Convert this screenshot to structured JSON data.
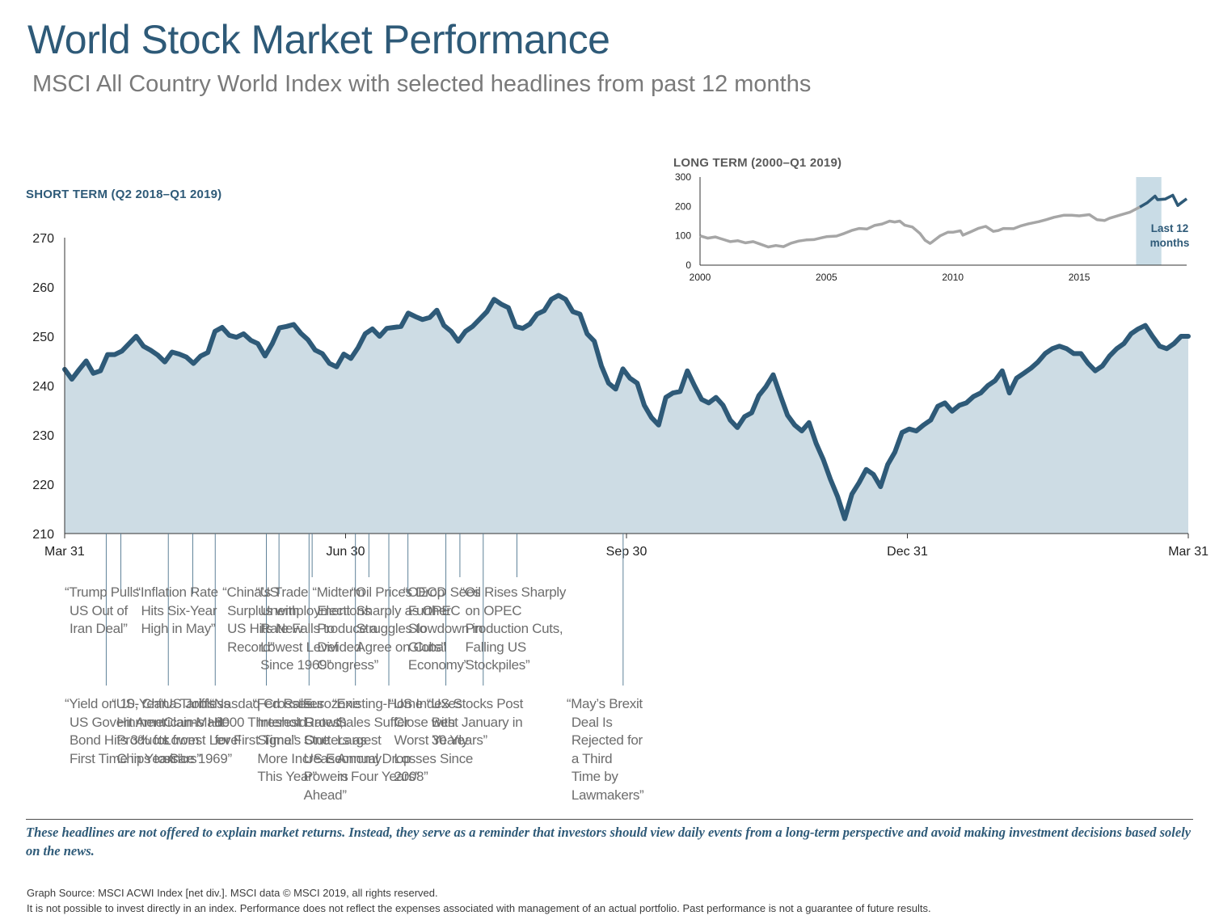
{
  "title": "World Stock Market Performance",
  "subtitle": "MSCI All Country World Index with selected headlines from past 12 months",
  "short_term_label": "SHORT TERM (Q2 2018–Q1 2019)",
  "long_term_label": "LONG TERM (2000–Q1 2019)",
  "highlight_label": "Last 12 months",
  "disclaimer": "These headlines are not offered to explain market returns. Instead, they serve as a reminder that investors should view daily events from a long-term perspective and avoid making investment decisions based solely on the news.",
  "source_line1": "Graph Source: MSCI ACWI Index [net div.]. MSCI data © MSCI 2019, all rights reserved.",
  "source_line2": "It is not possible to invest directly in an index. Performance does not reflect the expenses associated with management of an actual portfolio. Past performance is not a guarantee of future results.",
  "colors": {
    "title": "#2e5a78",
    "line": "#2e5a78",
    "fill": "#cddce4",
    "long_term_line": "#a6a6a6",
    "highlight": "#c9dce6",
    "headline_text": "#6d6d6d"
  },
  "headlines": [
    {
      "text": "“Yield on 10-Year US Government Bond Hits 3% for First Time in Years”",
      "lines": [
        "“Yield on 10-Year",
        "US Government",
        "Bond Hits 3% for",
        "First Time in Years”"
      ],
      "date_index": 0.148,
      "position": "below"
    },
    {
      "text": "“Trump Pulls US Out of Iran Deal”",
      "lines": [
        "“Trump Pulls",
        "US Out of",
        "Iran Deal”"
      ],
      "date_index": 0.2,
      "position": "above"
    },
    {
      "text": "“US, China Tariffs Hit American-Made Products from Chips to Cars”",
      "lines": [
        "“US, China Tariffs",
        "Hit American-Made",
        "Products from",
        "Chips to Cars”"
      ],
      "date_index": 0.369,
      "position": "below"
    },
    {
      "text": "“Inflation Rate Hits Six-Year High in May”",
      "lines": [
        "“Inflation Rate",
        "Hits Six-Year",
        "High in May”"
      ],
      "date_index": 0.456,
      "position": "above"
    },
    {
      "text": "“US Jobless Claims Hit Lowest Level since 1969”",
      "lines": [
        "“US Jobless",
        "Claims Hit",
        "Lowest Level",
        "since 1969”"
      ],
      "date_index": 0.536,
      "position": "below"
    },
    {
      "text": "“Nasdaq Crosses 8000 Threshold for First Time”",
      "lines": [
        "“Nasdaq Crosses",
        "8000 Threshold",
        "for First Time”"
      ],
      "date_index": 0.718,
      "position": "below"
    },
    {
      "text": "“China’s Trade Surplus with US Hits New Record”",
      "lines": [
        "“China’s Trade",
        "Surplus with",
        "US Hits New",
        "Record”"
      ],
      "date_index": 0.763,
      "position": "above"
    },
    {
      "text": "“Fed Raises Interest Rates, Signals One More Increase This Year”",
      "lines": [
        "“Fed Raises",
        "Interest Rates,",
        "Signals One",
        "More Increase",
        "This Year”"
      ],
      "date_index": 0.87,
      "position": "below"
    },
    {
      "text": "“US Unemployment Rate Falls to Lowest Level Since 1969”",
      "lines": [
        "“US",
        "Unemployment",
        "Rate Falls to",
        "Lowest Level",
        "Since 1969”"
      ],
      "date_index": 0.881,
      "position": "above"
    },
    {
      "text": "“Eurozone Growth Stutters as US Economy Powers Ahead”",
      "lines": [
        "“Eurozone",
        "Growth",
        "Stutters as",
        "US Economy",
        "Powers",
        "Ahead”"
      ],
      "date_index": 1.035,
      "position": "below"
    },
    {
      "text": "“Midterm Elections Produce a Divided Congress”",
      "lines": [
        "“Midterm",
        "Elections",
        "Produce a",
        "Divided",
        "Congress”"
      ],
      "date_index": 1.083,
      "position": "above"
    },
    {
      "text": "“Existing-Home Sales Suffer Largest Annual Drop in Four Years”",
      "lines": [
        "“Existing-Home",
        "Sales Suffer",
        "Largest",
        "Annual Drop",
        "in Four Years”"
      ],
      "date_index": 1.154,
      "position": "below"
    },
    {
      "text": "“Oil Prices Drop Sharply as OPEC Struggles to Agree on Cuts”",
      "lines": [
        "“Oil Prices Drop",
        "Sharply as OPEC",
        "Struggles to",
        "Agree on Cuts”"
      ],
      "date_index": 1.222,
      "position": "above"
    },
    {
      "text": "“US Indexes Close with Worst Yearly Losses Since 2008”",
      "lines": [
        "“US Indexes",
        "Close with",
        "Worst Yearly",
        "Losses Since",
        "2008”"
      ],
      "date_index": 1.357,
      "position": "below"
    },
    {
      "text": "“OECD Sees Further Slowdown in Global Economy”",
      "lines": [
        "“OECD Sees",
        "Further",
        "Slowdown in",
        "Global",
        "Economy”"
      ],
      "date_index": 1.407,
      "position": "above"
    },
    {
      "text": "“US Stocks Post Best January in 30 Years”",
      "lines": [
        "“US Stocks Post",
        "Best January in",
        "30 Years”"
      ],
      "date_index": 1.49,
      "position": "below"
    },
    {
      "text": "“Oil Rises Sharply on OPEC Production Cuts, Falling US Stockpiles”",
      "lines": [
        "“Oil Rises Sharply",
        "on OPEC",
        "Production Cuts,",
        "Falling US",
        "Stockpiles”"
      ],
      "date_index": 1.61,
      "position": "above"
    },
    {
      "text": "“May’s Brexit Deal Is Rejected for a Third Time by Lawmakers”",
      "lines": [
        "“May’s Brexit",
        "Deal Is",
        "Rejected for",
        "a Third",
        "Time by",
        "Lawmakers”"
      ],
      "date_index": 1.988,
      "position": "below"
    }
  ],
  "chart_data": [
    {
      "type": "area",
      "title": "SHORT TERM (Q2 2018–Q1 2019)",
      "x_ticks": [
        "Mar 31",
        "Jun 30",
        "Sep 30",
        "Dec 31",
        "Mar 31"
      ],
      "ylim": [
        210,
        270
      ],
      "y_ticks": [
        210,
        220,
        230,
        240,
        250,
        260,
        270
      ],
      "grid": false,
      "series": [
        {
          "values": [
            243.3,
            241.3,
            243.2,
            245.0,
            242.5,
            243.0,
            246.3,
            246.3,
            247.0,
            248.5,
            250.0,
            248.0,
            247.2,
            246.2,
            244.8,
            246.8,
            246.4,
            245.8,
            244.5,
            246.0,
            246.7,
            251.0,
            251.8,
            250.2,
            249.8,
            250.5,
            249.2,
            248.5,
            246.0,
            248.5,
            251.7,
            252.0,
            252.4,
            250.6,
            249.3,
            247.2,
            246.5,
            244.5,
            243.8,
            246.4,
            245.5,
            247.7,
            250.5,
            251.5,
            250.0,
            251.6,
            251.8,
            252.0,
            254.7,
            254.0,
            253.4,
            253.8,
            255.3,
            252.2,
            251.0,
            249.0,
            251.0,
            252.0,
            253.5,
            255.0,
            257.5,
            256.5,
            255.8,
            252.0,
            251.6,
            252.5,
            254.5,
            255.2,
            257.5,
            258.3,
            257.5,
            255.0,
            254.5,
            250.5,
            249.0,
            244.0,
            240.5,
            239.3,
            243.4,
            241.5,
            240.5,
            236.0,
            233.5,
            232.0,
            237.6,
            238.5,
            238.8,
            243.0,
            240.0,
            237.2,
            236.5,
            237.6,
            236.0,
            233.0,
            231.5,
            233.7,
            234.5,
            238.0,
            239.8,
            242.2,
            238.0,
            234.0,
            232.0,
            230.8,
            232.5,
            228.3,
            225.0,
            221.0,
            217.5,
            213.0,
            218.0,
            220.3,
            223.0,
            222.0,
            219.5,
            224.0,
            226.5,
            230.5,
            231.2,
            230.8,
            232.0,
            233.0,
            235.8,
            236.5,
            234.8,
            236.0,
            236.5,
            237.8,
            238.5,
            240.0,
            241.0,
            243.0,
            238.5,
            241.5,
            242.5,
            243.5,
            244.8,
            246.5,
            247.5,
            248.0,
            247.5,
            246.5,
            246.5,
            244.5,
            243.0,
            244.0,
            246.0,
            247.5,
            248.5,
            250.5,
            251.5,
            252.2,
            250.0,
            248.0,
            247.5,
            248.5,
            250.0,
            250.0
          ]
        }
      ]
    },
    {
      "type": "line",
      "title": "LONG TERM (2000–Q1 2019)",
      "x_ticks": [
        "2000",
        "2005",
        "2010",
        "2015"
      ],
      "xlim": [
        2000,
        2019.25
      ],
      "ylim": [
        0,
        300
      ],
      "y_ticks": [
        0,
        100,
        200,
        300
      ],
      "highlight_range": [
        2017.25,
        2018.25
      ],
      "grid": false,
      "series": [
        {
          "values": [
            [
              2000,
              100
            ],
            [
              2000.3,
              92
            ],
            [
              2000.6,
              96
            ],
            [
              2000.9,
              88
            ],
            [
              2001.2,
              80
            ],
            [
              2001.5,
              83
            ],
            [
              2001.8,
              76
            ],
            [
              2002.1,
              80
            ],
            [
              2002.4,
              71
            ],
            [
              2002.7,
              62
            ],
            [
              2003.0,
              67
            ],
            [
              2003.3,
              63
            ],
            [
              2003.6,
              75
            ],
            [
              2003.9,
              82
            ],
            [
              2004.2,
              86
            ],
            [
              2004.5,
              87
            ],
            [
              2004.8,
              93
            ],
            [
              2005.0,
              97
            ],
            [
              2005.4,
              99
            ],
            [
              2005.7,
              108
            ],
            [
              2006.0,
              118
            ],
            [
              2006.3,
              125
            ],
            [
              2006.6,
              123
            ],
            [
              2006.9,
              135
            ],
            [
              2007.2,
              140
            ],
            [
              2007.5,
              150
            ],
            [
              2007.7,
              147
            ],
            [
              2007.9,
              150
            ],
            [
              2008.1,
              136
            ],
            [
              2008.4,
              130
            ],
            [
              2008.7,
              108
            ],
            [
              2008.9,
              85
            ],
            [
              2009.1,
              74
            ],
            [
              2009.2,
              80
            ],
            [
              2009.5,
              100
            ],
            [
              2009.8,
              112
            ],
            [
              2010.0,
              112
            ],
            [
              2010.3,
              117
            ],
            [
              2010.4,
              102
            ],
            [
              2010.7,
              113
            ],
            [
              2011.0,
              125
            ],
            [
              2011.3,
              132
            ],
            [
              2011.6,
              115
            ],
            [
              2011.8,
              118
            ],
            [
              2012.0,
              125
            ],
            [
              2012.4,
              124
            ],
            [
              2012.7,
              134
            ],
            [
              2013.0,
              141
            ],
            [
              2013.4,
              148
            ],
            [
              2013.7,
              155
            ],
            [
              2014.0,
              163
            ],
            [
              2014.4,
              170
            ],
            [
              2014.7,
              170
            ],
            [
              2015.0,
              168
            ],
            [
              2015.4,
              172
            ],
            [
              2015.7,
              155
            ],
            [
              2016.0,
              152
            ],
            [
              2016.2,
              160
            ],
            [
              2016.6,
              170
            ],
            [
              2017.0,
              180
            ],
            [
              2017.4,
              198
            ],
            [
              2017.7,
              213
            ],
            [
              2018.0,
              235
            ],
            [
              2018.1,
              223
            ],
            [
              2018.4,
              225
            ],
            [
              2018.7,
              238
            ],
            [
              2018.9,
              203
            ],
            [
              2019.0,
              210
            ],
            [
              2019.25,
              226
            ]
          ]
        }
      ]
    }
  ]
}
